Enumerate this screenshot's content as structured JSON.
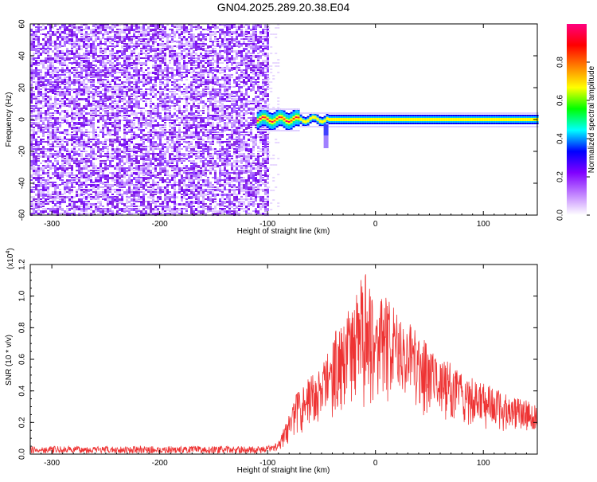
{
  "title": "GN04.2025.289.20.38.E04",
  "chart_data": [
    {
      "type": "heatmap",
      "name": "spectrogram",
      "xlabel": "Height of straight line (km)",
      "ylabel": "Frequency (Hz)",
      "xlim": [
        -320,
        150
      ],
      "ylim": [
        -60,
        60
      ],
      "xticks": [
        -300,
        -200,
        -100,
        0,
        100
      ],
      "yticks": [
        -60,
        -40,
        -20,
        0,
        20,
        40,
        60
      ],
      "noise_region_x": [
        -320,
        -100
      ],
      "signal_band_x": [
        -110,
        150
      ],
      "signal_center_freq": 0,
      "colorbar": {
        "label": "Normalized spectral amplitude",
        "ticks": [
          0.0,
          0.2,
          0.4,
          0.6,
          0.8
        ],
        "range": [
          0,
          1
        ],
        "colors": [
          "#ffffff",
          "#c080ff",
          "#8000ff",
          "#0000ff",
          "#00ffff",
          "#00ff00",
          "#ffff00",
          "#ff8000",
          "#ff0000",
          "#ff0080"
        ]
      }
    },
    {
      "type": "line",
      "name": "snr",
      "xlabel": "Height of straight line (km)",
      "ylabel": "SNR (10 * v/v)",
      "scale_label": "(x10",
      "scale_exp": "4",
      "scale_close": ")",
      "xlim": [
        -320,
        150
      ],
      "ylim": [
        0,
        1.2
      ],
      "xticks": [
        -300,
        -200,
        -100,
        0,
        100
      ],
      "yticks": [
        "0.0",
        "0.2",
        "0.4",
        "0.6",
        "0.8",
        "1.0",
        "1.2"
      ],
      "line_color": "#ee3333",
      "envelope_x": [
        -320,
        -100,
        -90,
        -80,
        -70,
        -60,
        -50,
        -40,
        -30,
        -20,
        -10,
        0,
        10,
        20,
        30,
        40,
        50,
        60,
        70,
        80,
        90,
        100,
        110,
        120,
        130,
        140,
        150
      ],
      "envelope_y": [
        0.05,
        0.05,
        0.08,
        0.25,
        0.45,
        0.5,
        0.55,
        0.75,
        0.88,
        0.95,
        1.2,
        0.97,
        1.0,
        0.9,
        0.85,
        0.75,
        0.7,
        0.6,
        0.58,
        0.52,
        0.48,
        0.45,
        0.42,
        0.38,
        0.36,
        0.34,
        0.3
      ]
    }
  ]
}
